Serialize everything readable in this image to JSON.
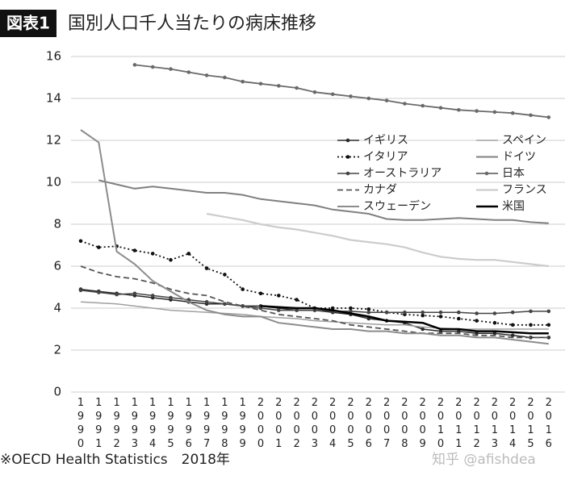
{
  "badge": "図表1",
  "footer": "※OECD  Health Statistics　2018年",
  "watermark": "知乎 @afishdea",
  "chart_data": {
    "type": "line",
    "title": "国別人口千人当たりの病床推移",
    "categories": [
      "1990",
      "1991",
      "1992",
      "1993",
      "1994",
      "1995",
      "1996",
      "1997",
      "1998",
      "1999",
      "2000",
      "2001",
      "2002",
      "2003",
      "2004",
      "2005",
      "2006",
      "2007",
      "2008",
      "2009",
      "2010",
      "2011",
      "2012",
      "2013",
      "2014",
      "2015",
      "2016"
    ],
    "ylim": [
      0,
      16
    ],
    "yticks": [
      0,
      2,
      4,
      6,
      8,
      10,
      12,
      14,
      16
    ],
    "grid": true,
    "series": [
      {
        "name": "イギリス",
        "color": "#2a2a2a",
        "dash": "solid",
        "marker": true,
        "width": 1.5,
        "values": [
          4.9,
          4.8,
          4.7,
          4.6,
          4.5,
          4.4,
          4.3,
          4.2,
          4.2,
          4.1,
          4.1,
          4.0,
          3.9,
          3.9,
          3.8,
          3.7,
          3.5,
          3.4,
          3.3,
          3.0,
          2.9,
          2.9,
          2.8,
          2.8,
          2.7,
          2.6,
          2.6
        ]
      },
      {
        "name": "スペイン",
        "color": "#a0a0a0",
        "dash": "solid",
        "marker": false,
        "width": 1.5,
        "values": [
          4.3,
          4.25,
          4.2,
          4.1,
          4.0,
          3.9,
          3.85,
          3.8,
          3.75,
          3.7,
          3.6,
          3.55,
          3.5,
          3.4,
          3.35,
          3.3,
          3.25,
          3.2,
          3.2,
          3.1,
          3.05,
          3.0,
          3.0,
          3.0,
          3.0,
          3.0,
          3.0
        ]
      },
      {
        "name": "イタリア",
        "color": "#111111",
        "dash": "dotted",
        "marker": true,
        "width": 1.8,
        "values": [
          7.2,
          6.9,
          6.95,
          6.75,
          6.6,
          6.3,
          6.6,
          5.9,
          5.6,
          4.9,
          4.7,
          4.6,
          4.4,
          4.0,
          4.0,
          4.0,
          3.95,
          3.8,
          3.7,
          3.65,
          3.6,
          3.5,
          3.4,
          3.3,
          3.2,
          3.2,
          3.2
        ]
      },
      {
        "name": "ドイツ",
        "color": "#808080",
        "dash": "solid",
        "marker": false,
        "width": 2,
        "values": [
          null,
          10.1,
          9.9,
          9.7,
          9.8,
          9.7,
          9.6,
          9.5,
          9.5,
          9.4,
          9.2,
          9.1,
          9.0,
          8.9,
          8.7,
          8.6,
          8.5,
          8.25,
          8.2,
          8.2,
          8.25,
          8.3,
          8.25,
          8.2,
          8.2,
          8.1,
          8.05
        ]
      },
      {
        "name": "オーストラリア",
        "color": "#444444",
        "dash": "solid",
        "marker": true,
        "width": 1.5,
        "values": [
          4.85,
          4.75,
          4.65,
          4.7,
          4.6,
          4.5,
          4.4,
          4.3,
          4.2,
          4.1,
          4.0,
          3.9,
          3.9,
          3.9,
          3.85,
          3.85,
          3.8,
          3.8,
          3.8,
          3.8,
          3.8,
          3.8,
          3.75,
          3.75,
          3.8,
          3.85,
          3.85
        ]
      },
      {
        "name": "日本",
        "color": "#6a6a6a",
        "dash": "solid",
        "marker": true,
        "width": 1.8,
        "values": [
          null,
          null,
          null,
          15.6,
          15.5,
          15.4,
          15.25,
          15.1,
          15.0,
          14.8,
          14.7,
          14.6,
          14.5,
          14.3,
          14.2,
          14.1,
          14.0,
          13.9,
          13.75,
          13.65,
          13.55,
          13.45,
          13.4,
          13.35,
          13.3,
          13.2,
          13.1
        ]
      },
      {
        "name": "カナダ",
        "color": "#555555",
        "dash": "dashed",
        "marker": false,
        "width": 1.8,
        "values": [
          6.0,
          5.7,
          5.5,
          5.4,
          5.2,
          4.9,
          4.7,
          4.6,
          4.3,
          4.1,
          3.9,
          3.7,
          3.6,
          3.5,
          3.4,
          3.2,
          3.1,
          3.0,
          2.9,
          2.8,
          2.8,
          2.8,
          2.7,
          2.7,
          2.6,
          2.6,
          2.6
        ]
      },
      {
        "name": "フランス",
        "color": "#cccccc",
        "dash": "solid",
        "marker": false,
        "width": 2.2,
        "values": [
          null,
          null,
          null,
          null,
          null,
          null,
          null,
          8.5,
          8.35,
          8.2,
          8.0,
          7.85,
          7.75,
          7.6,
          7.45,
          7.25,
          7.15,
          7.05,
          6.9,
          6.65,
          6.45,
          6.35,
          6.3,
          6.3,
          6.2,
          6.1,
          6.0
        ]
      },
      {
        "name": "スウェーデン",
        "color": "#8c8c8c",
        "dash": "solid",
        "marker": false,
        "width": 2,
        "values": [
          12.5,
          11.9,
          6.7,
          6.1,
          5.3,
          4.8,
          4.3,
          3.9,
          3.7,
          3.6,
          3.6,
          3.3,
          3.2,
          3.1,
          3.0,
          3.0,
          2.9,
          2.9,
          2.8,
          2.8,
          2.7,
          2.7,
          2.6,
          2.6,
          2.5,
          2.4,
          2.3
        ]
      },
      {
        "name": "米国",
        "color": "#000000",
        "dash": "solid",
        "marker": false,
        "width": 2.5,
        "values": [
          null,
          null,
          null,
          null,
          null,
          null,
          null,
          null,
          null,
          null,
          4.1,
          4.05,
          4.0,
          4.0,
          3.9,
          3.75,
          3.6,
          3.4,
          3.35,
          3.3,
          3.0,
          3.0,
          2.9,
          2.9,
          2.85,
          2.8,
          2.8
        ]
      }
    ]
  }
}
